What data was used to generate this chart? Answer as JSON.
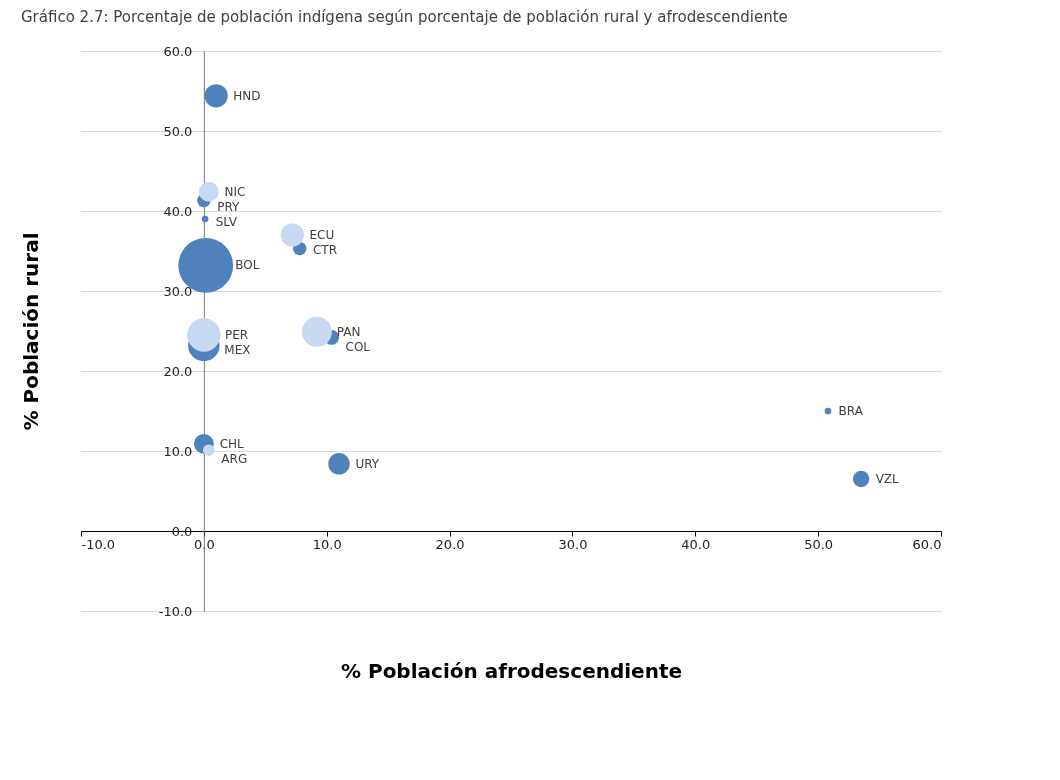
{
  "chart_data": {
    "type": "bubble",
    "title": "Gráfico 2.7: Porcentaje de población indígena según porcentaje de población rural y afrodescendiente",
    "xlabel": "% Población afrodescendiente",
    "ylabel": "% Población rural",
    "series": [
      {
        "color": "#4f81bd",
        "x": [
          1.0,
          0.0,
          0.1,
          7.8,
          0.15,
          0.0,
          10.4,
          0.0,
          11.0,
          50.8,
          53.5
        ],
        "values": [
          54.4,
          41.3,
          39.0,
          35.3,
          33.2,
          23.2,
          24.2,
          10.9,
          8.4,
          15.0,
          6.5
        ],
        "sizes": [
          0.18,
          0.06,
          0.015,
          0.06,
          1,
          0.33,
          0.074,
          0.13,
          0.155,
          0.015,
          0.09
        ]
      },
      {
        "color": "#c6d9f0",
        "x": [
          0.4,
          7.2,
          0.0,
          9.2,
          0.4
        ],
        "values": [
          42.4,
          37.0,
          24.5,
          24.9,
          10.1
        ],
        "sizes": [
          0.13,
          0.18,
          0.37,
          0.3,
          0.045
        ]
      }
    ],
    "annotations": [
      {
        "text": "HND",
        "x": 1.0,
        "y": 54.4
      },
      {
        "text": "NIC",
        "x": 0.4,
        "y": 42.4
      },
      {
        "text": "PRY",
        "x": 0.0,
        "y": 41.3
      },
      {
        "text": "SLV",
        "x": 0.1,
        "y": 39.0
      },
      {
        "text": "ECU",
        "x": 7.2,
        "y": 37.0
      },
      {
        "text": "CTR",
        "x": 7.8,
        "y": 35.3
      },
      {
        "text": "BOL",
        "x": 0.15,
        "y": 33.2
      },
      {
        "text": "PER",
        "x": 0.0,
        "y": 24.5
      },
      {
        "text": "MEX",
        "x": 0.0,
        "y": 23.2
      },
      {
        "text": "PAN",
        "x": 9.2,
        "y": 24.9
      },
      {
        "text": "COL",
        "x": 10.4,
        "y": 24.2
      },
      {
        "text": "CHL",
        "x": 0.0,
        "y": 10.9
      },
      {
        "text": "ARG",
        "x": 0.4,
        "y": 10.1
      },
      {
        "text": "URY",
        "x": 11.0,
        "y": 8.4
      },
      {
        "text": "BRA",
        "x": 50.8,
        "y": 15.0
      },
      {
        "text": "VZL",
        "x": 53.5,
        "y": 6.5
      }
    ],
    "xlim": [
      -10,
      60
    ],
    "ylim": [
      -10,
      60
    ],
    "xticks": [
      {
        "value": -10,
        "label": "-10.0"
      },
      {
        "value": 0,
        "label": "0.0"
      },
      {
        "value": 10,
        "label": "10.0"
      },
      {
        "value": 20,
        "label": "20.0"
      },
      {
        "value": 30,
        "label": "30.0"
      },
      {
        "value": 40,
        "label": "40.0"
      },
      {
        "value": 50,
        "label": "50.0"
      },
      {
        "value": 60,
        "label": "60.0"
      }
    ],
    "yticks": [
      {
        "value": -10,
        "label": "-10.0"
      },
      {
        "value": 0,
        "label": "0.0"
      },
      {
        "value": 10,
        "label": "10.0"
      },
      {
        "value": 20,
        "label": "20.0"
      },
      {
        "value": 30,
        "label": "30.0"
      },
      {
        "value": 40,
        "label": "40.0"
      },
      {
        "value": 50,
        "label": "50.0"
      },
      {
        "value": 60,
        "label": "60.0"
      }
    ],
    "grid": "y",
    "legend": false
  }
}
